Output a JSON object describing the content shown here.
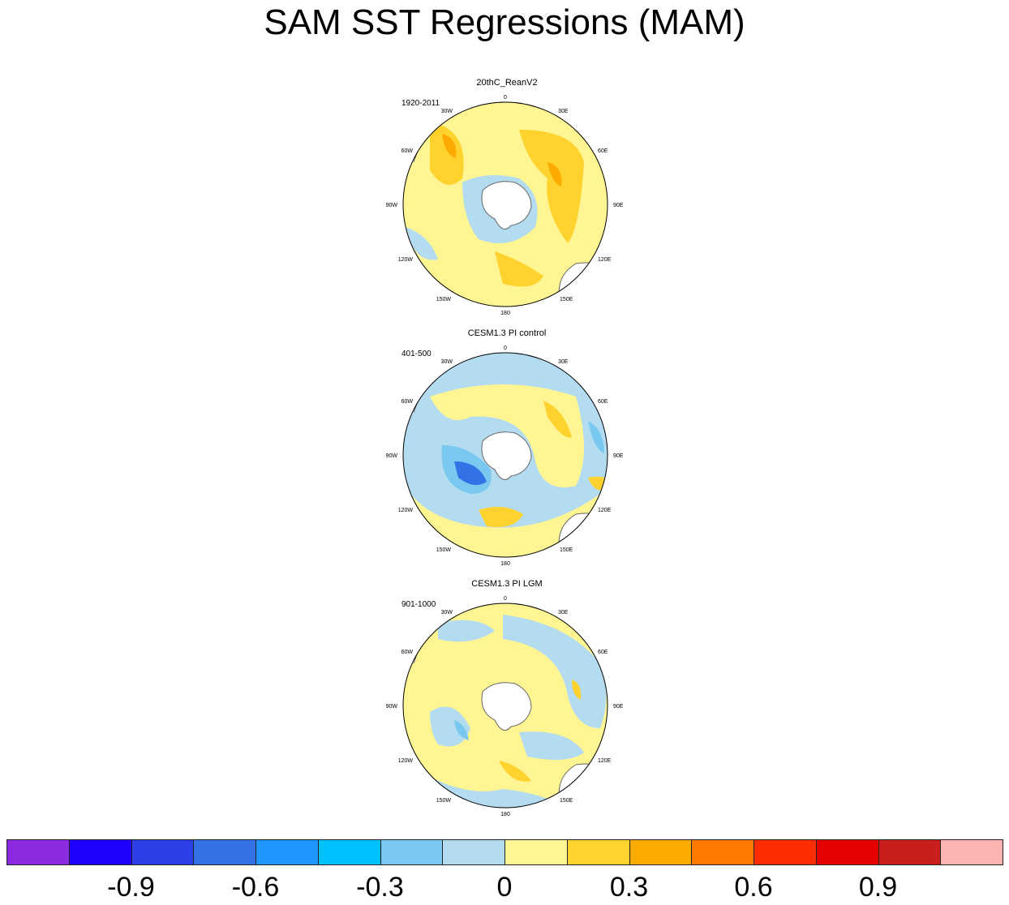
{
  "title": "SAM SST Regressions (MAM)",
  "panels": [
    {
      "title": "20thC_ReanV2",
      "period": "1920-2011"
    },
    {
      "title": "CESM1.3 PI control",
      "period": "401-500"
    },
    {
      "title": "CESM1.3 PI LGM",
      "period": "901-1000"
    }
  ],
  "lon_labels": [
    "0",
    "30E",
    "60E",
    "90E",
    "120E",
    "150E",
    "180",
    "150W",
    "120W",
    "90W",
    "60W",
    "30W"
  ],
  "colorbar": {
    "colors": [
      "#8a2be2",
      "#1e00ff",
      "#2d3fe6",
      "#3271e6",
      "#1e96ff",
      "#00c0ff",
      "#78c8f0",
      "#b4dcf0",
      "#fff592",
      "#ffd22d",
      "#ffaa00",
      "#ff7800",
      "#ff2d00",
      "#e60000",
      "#c81e1e",
      "#ffb4b4"
    ],
    "labels": [
      "-0.9",
      "-0.6",
      "-0.3",
      "0",
      "0.3",
      "0.6",
      "0.9"
    ]
  }
}
